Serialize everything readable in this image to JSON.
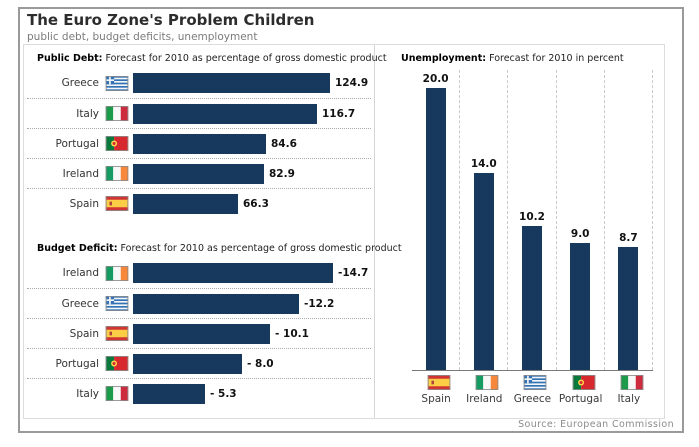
{
  "page": {
    "title": "The Euro Zone's Problem Children",
    "subtitle": "public debt, budget deficits, unemployment",
    "source": "Source: European Commission"
  },
  "colors": {
    "bar": "#17395e",
    "frame_border": "#9a9a9a",
    "panel_border": "#dcdcdc",
    "grid": "#c9c9c9",
    "baseline": "#787878"
  },
  "chart_data": [
    {
      "type": "bar",
      "orientation": "horizontal",
      "title": "Public Debt:",
      "subtitle": "Forecast for 2010 as percentage of gross domestic product",
      "categories": [
        "Greece",
        "Italy",
        "Portugal",
        "Ireland",
        "Spain"
      ],
      "flags": [
        "greece",
        "italy",
        "portugal",
        "ireland",
        "spain"
      ],
      "values": [
        124.9,
        116.7,
        84.6,
        82.9,
        66.3
      ],
      "value_labels": [
        "124.9",
        "116.7",
        "84.6",
        "82.9",
        "66.3"
      ],
      "xlim": [
        0,
        130
      ],
      "grid": false,
      "legend": "none"
    },
    {
      "type": "bar",
      "orientation": "horizontal",
      "title": "Budget Deficit:",
      "subtitle": "Forecast for 2010 as percentage of gross domestic product",
      "categories": [
        "Ireland",
        "Greece",
        "Spain",
        "Portugal",
        "Italy"
      ],
      "flags": [
        "ireland",
        "greece",
        "spain",
        "portugal",
        "italy"
      ],
      "values": [
        -14.7,
        -12.2,
        -10.1,
        -8.0,
        -5.3
      ],
      "value_labels": [
        "-14.7",
        "-12.2",
        "- 10.1",
        "- 8.0",
        "- 5.3"
      ],
      "xlim": [
        0,
        16
      ],
      "grid": false,
      "legend": "none"
    },
    {
      "type": "bar",
      "orientation": "vertical",
      "title": "Unemployment:",
      "subtitle": "Forecast for 2010 in percent",
      "categories": [
        "Spain",
        "Ireland",
        "Greece",
        "Portugal",
        "Italy"
      ],
      "flags": [
        "spain",
        "ireland",
        "greece",
        "portugal",
        "italy"
      ],
      "values": [
        20.0,
        14.0,
        10.2,
        9.0,
        8.7
      ],
      "value_labels": [
        "20.0",
        "14.0",
        "10.2",
        "9.0",
        "8.7"
      ],
      "ylim": [
        0,
        21
      ],
      "grid": true,
      "legend": "none"
    }
  ]
}
